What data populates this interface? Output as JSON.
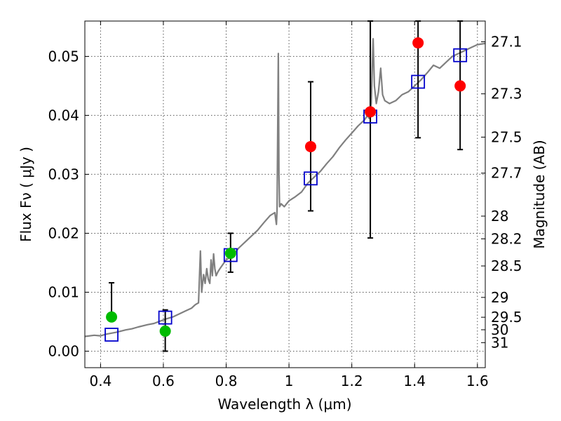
{
  "chart_data": {
    "type": "scatter",
    "title": "",
    "xlabel": "Wavelength  λ (μm)",
    "ylabel": "Flux  Fν  ( μJy )",
    "y2label": "Magnitude (AB)",
    "xlim": [
      0.35,
      1.625
    ],
    "ylim": [
      -0.0028,
      0.056
    ],
    "grid": true,
    "x_ticks": [
      {
        "value": 0.4,
        "label": "0.4"
      },
      {
        "value": 0.6,
        "label": "0.6"
      },
      {
        "value": 0.8,
        "label": "0.8"
      },
      {
        "value": 1.0,
        "label": "1"
      },
      {
        "value": 1.2,
        "label": "1.2"
      },
      {
        "value": 1.4,
        "label": "1.4"
      },
      {
        "value": 1.6,
        "label": "1.6"
      }
    ],
    "y_ticks": [
      {
        "value": 0.0,
        "label": "0.00"
      },
      {
        "value": 0.01,
        "label": "0.01"
      },
      {
        "value": 0.02,
        "label": "0.02"
      },
      {
        "value": 0.03,
        "label": "0.03"
      },
      {
        "value": 0.04,
        "label": "0.04"
      },
      {
        "value": 0.05,
        "label": "0.05"
      }
    ],
    "y2_ticks": [
      {
        "value": 27.1,
        "label": "27.1"
      },
      {
        "value": 27.3,
        "label": "27.3"
      },
      {
        "value": 27.5,
        "label": "27.5"
      },
      {
        "value": 27.7,
        "label": "27.7"
      },
      {
        "value": 28.0,
        "label": "28"
      },
      {
        "value": 28.2,
        "label": "28.2"
      },
      {
        "value": 28.5,
        "label": "28.5"
      },
      {
        "value": 29.0,
        "label": "29"
      },
      {
        "value": 29.5,
        "label": "29.5"
      },
      {
        "value": 30.0,
        "label": "30"
      },
      {
        "value": 31.0,
        "label": "31"
      }
    ],
    "colors": {
      "model_line": "#808080",
      "model_box": "#0000cc",
      "observed_red": "#ff0000",
      "observed_green": "#00bb00",
      "errorbar": "#000000",
      "grid": "#555555"
    },
    "series": [
      {
        "type": "line",
        "color": "#808080",
        "points": [
          [
            0.35,
            0.0025
          ],
          [
            0.38,
            0.0027
          ],
          [
            0.4,
            0.0026
          ],
          [
            0.42,
            0.0029
          ],
          [
            0.45,
            0.0032
          ],
          [
            0.48,
            0.0036
          ],
          [
            0.5,
            0.0038
          ],
          [
            0.52,
            0.0041
          ],
          [
            0.55,
            0.0045
          ],
          [
            0.57,
            0.0047
          ],
          [
            0.59,
            0.0051
          ],
          [
            0.61,
            0.0055
          ],
          [
            0.63,
            0.0058
          ],
          [
            0.65,
            0.0063
          ],
          [
            0.67,
            0.0068
          ],
          [
            0.69,
            0.0073
          ],
          [
            0.7,
            0.0078
          ],
          [
            0.705,
            0.008
          ],
          [
            0.712,
            0.0082
          ],
          [
            0.718,
            0.017
          ],
          [
            0.722,
            0.01
          ],
          [
            0.728,
            0.013
          ],
          [
            0.733,
            0.0115
          ],
          [
            0.738,
            0.014
          ],
          [
            0.743,
            0.0122
          ],
          [
            0.748,
            0.0115
          ],
          [
            0.752,
            0.0155
          ],
          [
            0.756,
            0.0128
          ],
          [
            0.76,
            0.0165
          ],
          [
            0.764,
            0.014
          ],
          [
            0.768,
            0.0128
          ],
          [
            0.774,
            0.0135
          ],
          [
            0.78,
            0.014
          ],
          [
            0.8,
            0.0155
          ],
          [
            0.82,
            0.0162
          ],
          [
            0.84,
            0.0175
          ],
          [
            0.86,
            0.0185
          ],
          [
            0.88,
            0.0195
          ],
          [
            0.9,
            0.0205
          ],
          [
            0.92,
            0.0218
          ],
          [
            0.94,
            0.023
          ],
          [
            0.955,
            0.0235
          ],
          [
            0.96,
            0.0215
          ],
          [
            0.962,
            0.024
          ],
          [
            0.966,
            0.0505
          ],
          [
            0.968,
            0.03
          ],
          [
            0.97,
            0.0245
          ],
          [
            0.975,
            0.025
          ],
          [
            0.985,
            0.0245
          ],
          [
            1.0,
            0.0255
          ],
          [
            1.02,
            0.0262
          ],
          [
            1.04,
            0.027
          ],
          [
            1.06,
            0.0285
          ],
          [
            1.08,
            0.0295
          ],
          [
            1.1,
            0.0305
          ],
          [
            1.12,
            0.0318
          ],
          [
            1.14,
            0.033
          ],
          [
            1.16,
            0.0345
          ],
          [
            1.18,
            0.0358
          ],
          [
            1.2,
            0.037
          ],
          [
            1.22,
            0.0382
          ],
          [
            1.24,
            0.0392
          ],
          [
            1.25,
            0.04
          ],
          [
            1.255,
            0.0395
          ],
          [
            1.262,
            0.042
          ],
          [
            1.265,
            0.048
          ],
          [
            1.268,
            0.053
          ],
          [
            1.272,
            0.045
          ],
          [
            1.278,
            0.042
          ],
          [
            1.285,
            0.044
          ],
          [
            1.292,
            0.048
          ],
          [
            1.298,
            0.0435
          ],
          [
            1.305,
            0.0425
          ],
          [
            1.32,
            0.042
          ],
          [
            1.34,
            0.0425
          ],
          [
            1.36,
            0.0435
          ],
          [
            1.38,
            0.044
          ],
          [
            1.4,
            0.045
          ],
          [
            1.42,
            0.046
          ],
          [
            1.44,
            0.0472
          ],
          [
            1.46,
            0.0485
          ],
          [
            1.48,
            0.048
          ],
          [
            1.5,
            0.049
          ],
          [
            1.52,
            0.05
          ],
          [
            1.54,
            0.0505
          ],
          [
            1.56,
            0.051
          ],
          [
            1.58,
            0.0515
          ],
          [
            1.6,
            0.052
          ],
          [
            1.625,
            0.0522
          ]
        ]
      },
      {
        "type": "scatter",
        "marker": "square",
        "color": "#0000cc",
        "points": [
          {
            "x": 0.435,
            "y": 0.0028
          },
          {
            "x": 0.606,
            "y": 0.0057
          },
          {
            "x": 0.814,
            "y": 0.0163
          },
          {
            "x": 1.069,
            "y": 0.0293
          },
          {
            "x": 1.259,
            "y": 0.0398
          },
          {
            "x": 1.411,
            "y": 0.0457
          },
          {
            "x": 1.545,
            "y": 0.0502
          }
        ]
      },
      {
        "type": "scatter",
        "marker": "circle",
        "points": [
          {
            "x": 0.435,
            "y": 0.0058,
            "yerr_low": 0.0058,
            "yerr_high": 0.0116,
            "color": "#00bb00"
          },
          {
            "x": 0.606,
            "y": 0.0034,
            "yerr_low": 0.0,
            "yerr_high": 0.007,
            "color": "#00bb00"
          },
          {
            "x": 0.814,
            "y": 0.0166,
            "yerr_low": 0.0134,
            "yerr_high": 0.02,
            "color": "#00bb00"
          },
          {
            "x": 1.069,
            "y": 0.0347,
            "yerr_low": 0.0238,
            "yerr_high": 0.0457,
            "color": "#ff0000"
          },
          {
            "x": 1.259,
            "y": 0.0406,
            "yerr_low": 0.0192,
            "yerr_high": 0.056,
            "color": "#ff0000"
          },
          {
            "x": 1.411,
            "y": 0.0523,
            "yerr_low": 0.0362,
            "yerr_high": 0.056,
            "color": "#ff0000"
          },
          {
            "x": 1.545,
            "y": 0.045,
            "yerr_low": 0.0342,
            "yerr_high": 0.056,
            "color": "#ff0000"
          }
        ]
      }
    ]
  }
}
